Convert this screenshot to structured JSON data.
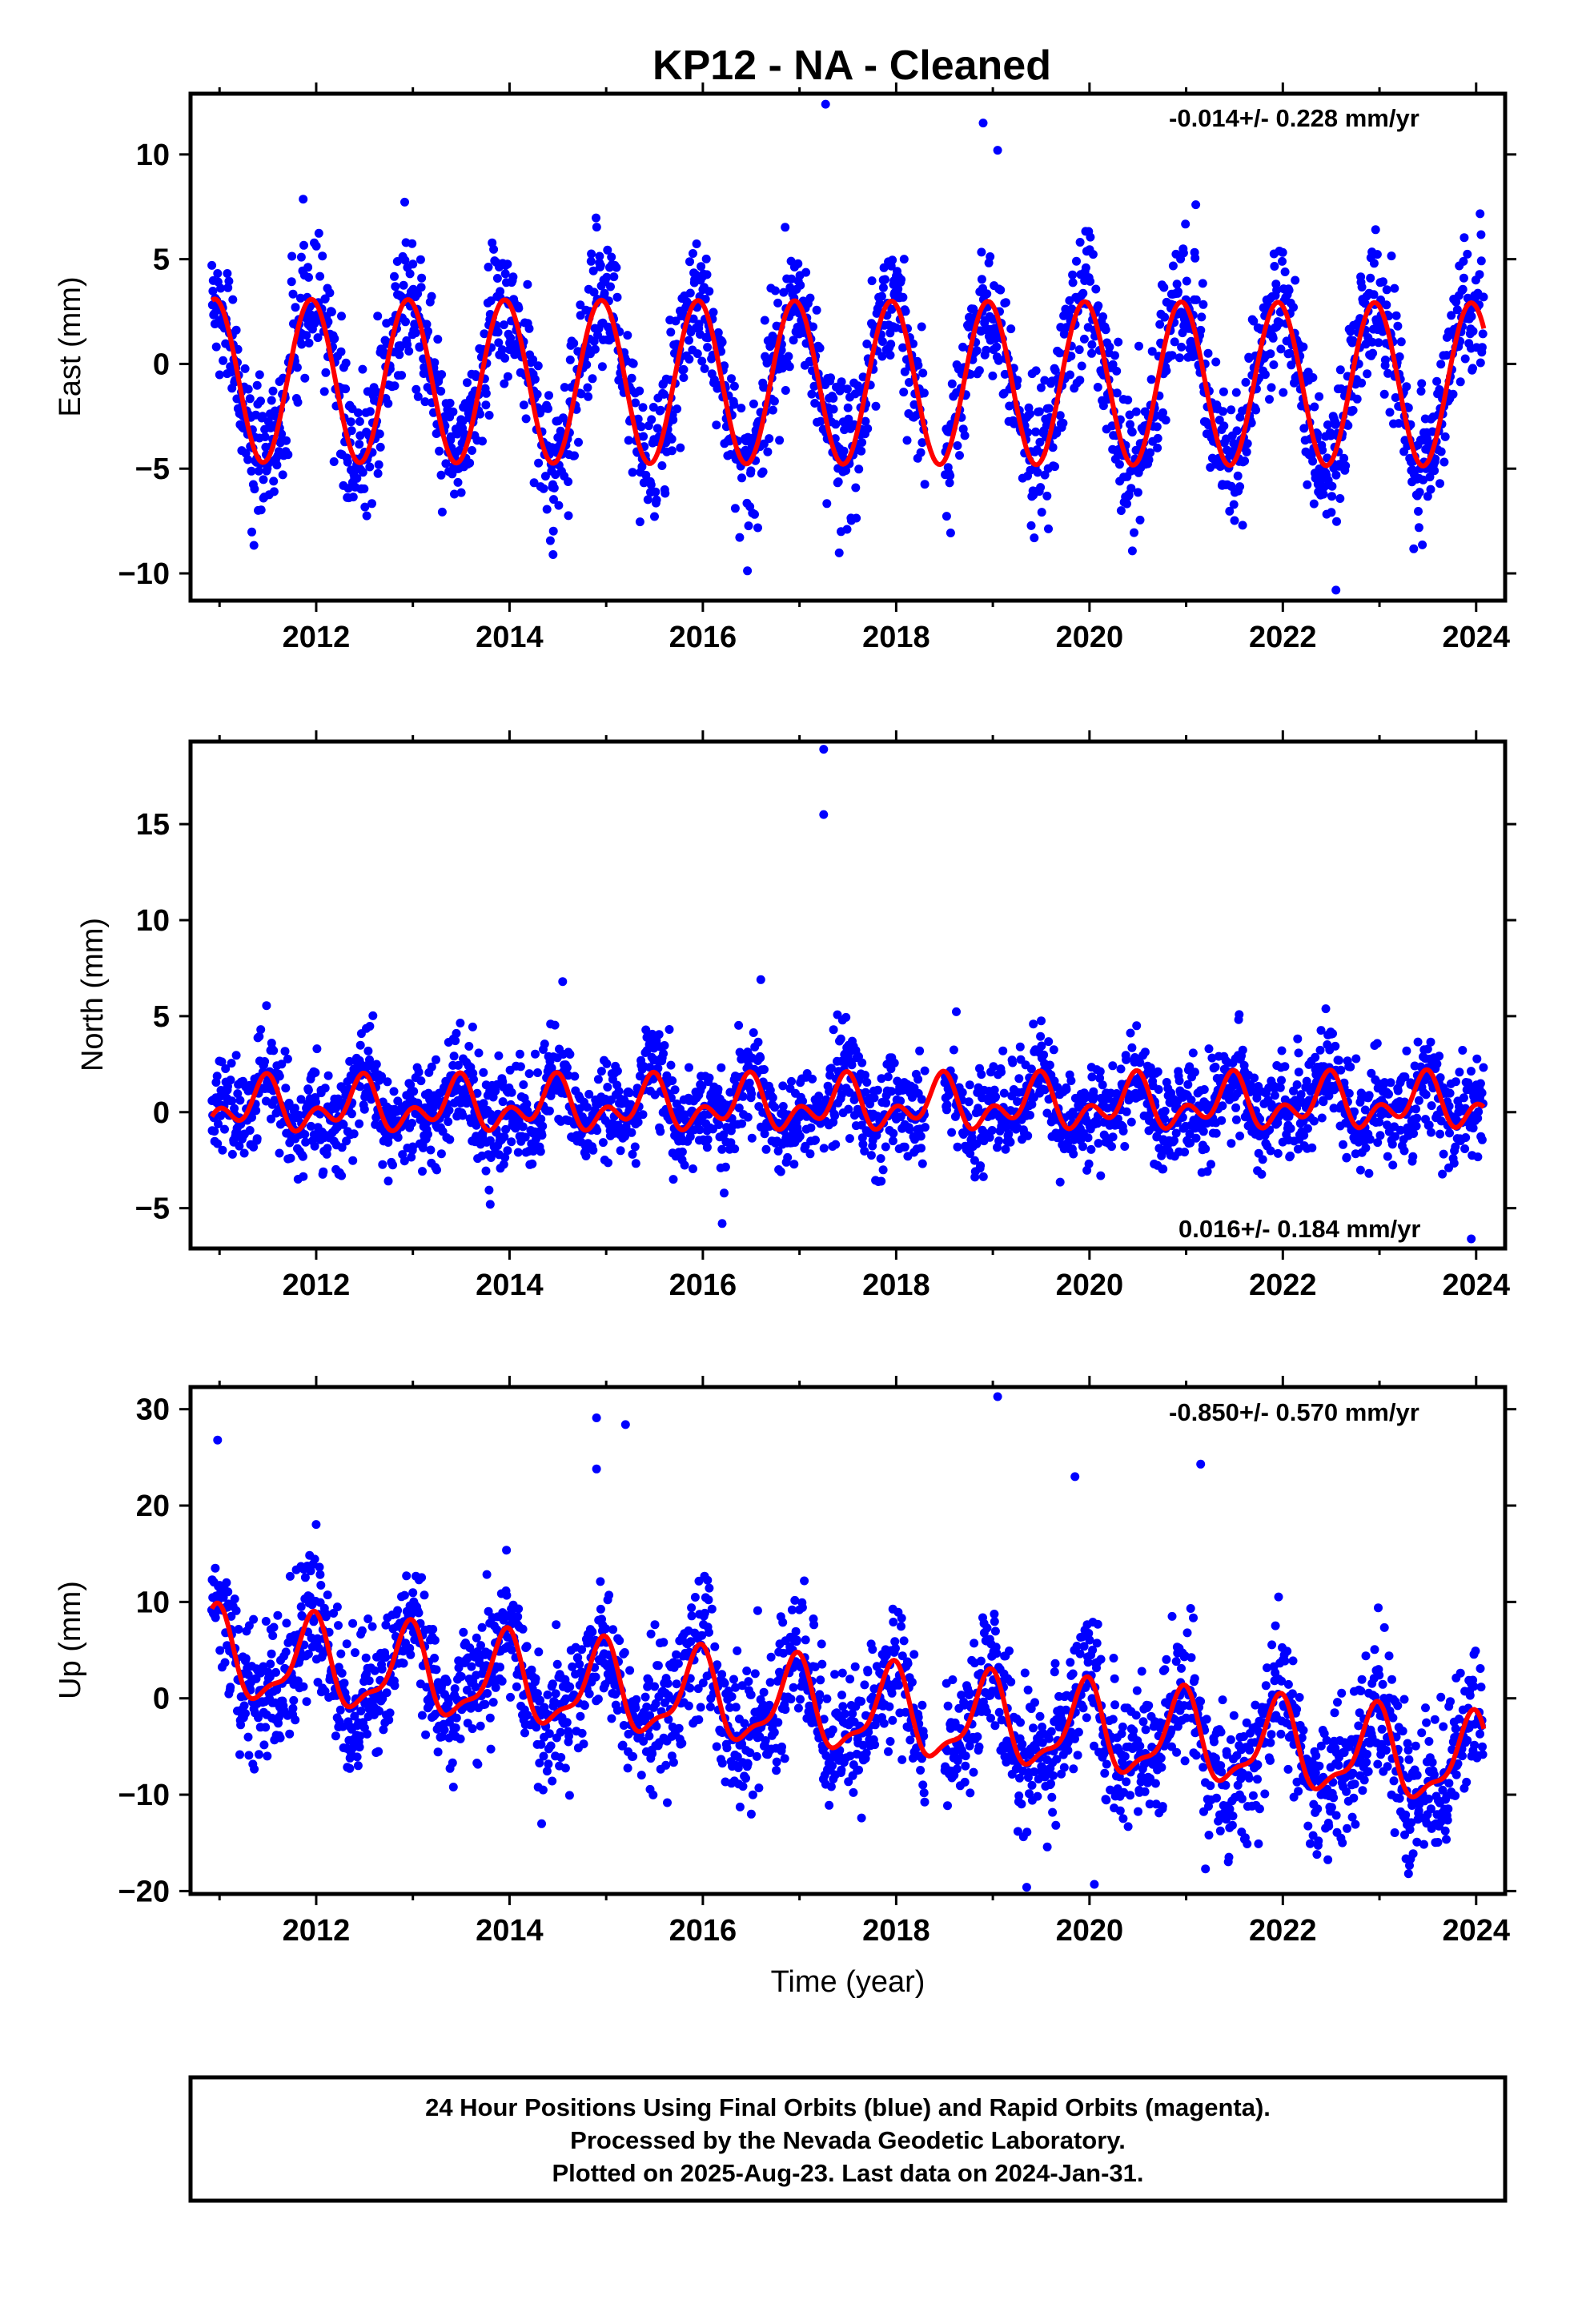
{
  "title": "KP12  - NA - Cleaned",
  "x_tick_labels": [
    "2012",
    "2014",
    "2016",
    "2018",
    "2020",
    "2022",
    "2024"
  ],
  "xlabel": "Time (year)",
  "footer": {
    "line1": "24 Hour Positions Using Final Orbits (blue) and Rapid Orbits (magenta).",
    "line2": "Processed by the Nevada Geodetic Laboratory.",
    "line3": "Plotted on 2025-Aug-23. Last data on 2024-Jan-31."
  },
  "colors": {
    "observations": "#0000ff",
    "model": "#ff0000",
    "frame": "#000000",
    "background": "#ffffff"
  },
  "chart_data": [
    {
      "type": "scatter",
      "panel": "east",
      "ylabel": "East (mm)",
      "rate_text": "-0.014+/- 0.228 mm/yr",
      "xlim": [
        2010.7,
        2024.3
      ],
      "ylim": [
        -11.3,
        12.9
      ],
      "y_ticks": [
        -10,
        -5,
        0,
        5,
        10
      ],
      "y_tick_labels": [
        "−10",
        "−5",
        "0",
        "5",
        "10"
      ],
      "data_span": [
        2010.92,
        2024.08
      ],
      "gap": [
        2018.3,
        2018.5
      ],
      "model": {
        "offset": -0.8,
        "trend": -0.014,
        "annual_amp": 3.9,
        "annual_peak": 2010.95,
        "semi_amp": 0.0,
        "semi_peak": 2011.0
      },
      "scatter_sd": 1.6,
      "outliers": [
        [
          2017.27,
          12.4
        ],
        [
          2018.9,
          11.5
        ],
        [
          2019.05,
          10.2
        ],
        [
          2022.55,
          -10.8
        ],
        [
          2014.45,
          -9.1
        ],
        [
          2021.1,
          7.6
        ]
      ],
      "series": [
        {
          "name": "Final Orbits",
          "color": "#0000ff",
          "kind": "points"
        },
        {
          "name": "Model",
          "color": "#ff0000",
          "kind": "line"
        }
      ]
    },
    {
      "type": "scatter",
      "panel": "north",
      "ylabel": "North (mm)",
      "rate_text": "0.016+/- 0.184 mm/yr",
      "xlim": [
        2010.7,
        2024.3
      ],
      "ylim": [
        -7.1,
        19.3
      ],
      "y_ticks": [
        -5,
        0,
        5,
        10,
        15
      ],
      "y_tick_labels": [
        "−5",
        "0",
        "5",
        "10",
        "15"
      ],
      "data_span": [
        2010.92,
        2024.08
      ],
      "gap": [
        2018.3,
        2018.5
      ],
      "model": {
        "offset": 0.25,
        "trend": 0.016,
        "annual_amp": 0.95,
        "annual_peak": 2011.45,
        "semi_amp": 0.85,
        "semi_peak": 2011.5
      },
      "scatter_sd": 1.3,
      "outliers": [
        [
          2017.25,
          18.9
        ],
        [
          2017.25,
          15.5
        ],
        [
          2016.6,
          6.9
        ],
        [
          2014.55,
          6.8
        ],
        [
          2016.2,
          -5.8
        ],
        [
          2023.95,
          -6.6
        ],
        [
          2013.8,
          -4.8
        ]
      ],
      "series": [
        {
          "name": "Final Orbits",
          "color": "#0000ff",
          "kind": "points"
        },
        {
          "name": "Model",
          "color": "#ff0000",
          "kind": "line"
        }
      ]
    },
    {
      "type": "scatter",
      "panel": "up",
      "ylabel": "Up (mm)",
      "rate_text": "-0.850+/- 0.570 mm/yr",
      "xlim": [
        2010.7,
        2024.3
      ],
      "ylim": [
        -20.3,
        32.3
      ],
      "y_ticks": [
        -20,
        -10,
        0,
        10,
        20,
        30
      ],
      "y_tick_labels": [
        "−20",
        "−10",
        "0",
        "10",
        "20",
        "30"
      ],
      "data_span": [
        2010.92,
        2024.08
      ],
      "gap": [
        2018.3,
        2018.5
      ],
      "model": {
        "offset": 4.2,
        "trend": -0.85,
        "annual_amp": 4.3,
        "annual_peak": 2010.95,
        "semi_amp": 1.5,
        "semi_peak": 2011.0
      },
      "scatter_sd": 3.5,
      "outliers": [
        [
          2019.05,
          31.3
        ],
        [
          2014.9,
          29.1
        ],
        [
          2015.2,
          28.4
        ],
        [
          2010.98,
          26.8
        ],
        [
          2014.9,
          23.8
        ],
        [
          2019.85,
          23.0
        ],
        [
          2021.15,
          24.3
        ],
        [
          2019.35,
          -19.6
        ],
        [
          2020.05,
          -19.3
        ],
        [
          2023.3,
          -18.2
        ],
        [
          2021.2,
          -17.7
        ],
        [
          2012.35,
          -6.2
        ]
      ],
      "series": [
        {
          "name": "Final Orbits",
          "color": "#0000ff",
          "kind": "points"
        },
        {
          "name": "Model",
          "color": "#ff0000",
          "kind": "line"
        }
      ]
    }
  ]
}
